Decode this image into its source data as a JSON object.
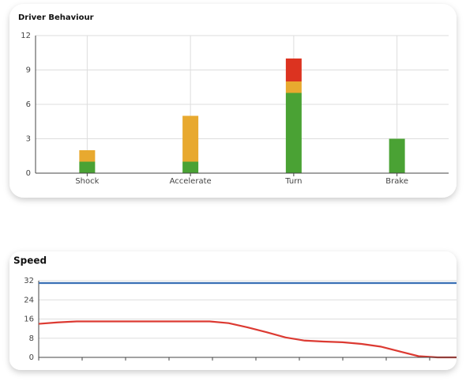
{
  "charts": [
    {
      "type": "bar",
      "stacked": true,
      "title": "Driver Behaviour",
      "categories": [
        "Shock",
        "Accelerate",
        "Turn",
        "Brake"
      ],
      "series": [
        {
          "color": "#4aa234",
          "values": [
            1,
            1,
            7,
            3
          ]
        },
        {
          "color": "#e8a92f",
          "values": [
            1,
            4,
            1,
            0
          ]
        },
        {
          "color": "#dc3320",
          "values": [
            0,
            0,
            2,
            0
          ]
        }
      ],
      "ylim": [
        0,
        12
      ],
      "yticks": [
        0,
        3,
        6,
        9,
        12
      ],
      "grid": true
    },
    {
      "type": "line",
      "title": "Speed",
      "series": [
        {
          "color": "#3a70b5",
          "values": [
            31,
            31,
            31,
            31,
            31,
            31,
            31,
            31,
            31,
            31,
            31,
            31,
            31,
            31,
            31,
            31,
            31,
            31,
            31,
            31,
            31,
            31,
            31
          ]
        },
        {
          "color": "#dc3a32",
          "values": [
            14,
            14.6,
            15,
            15,
            15,
            15,
            15,
            15,
            15,
            15,
            14.3,
            12.5,
            10.5,
            8.3,
            7,
            6.6,
            6.3,
            5.6,
            4.5,
            2.5,
            0.5,
            0,
            0
          ]
        }
      ],
      "ylim": [
        0,
        32
      ],
      "yticks": [
        0,
        8,
        16,
        24,
        32
      ],
      "grid": true
    }
  ]
}
